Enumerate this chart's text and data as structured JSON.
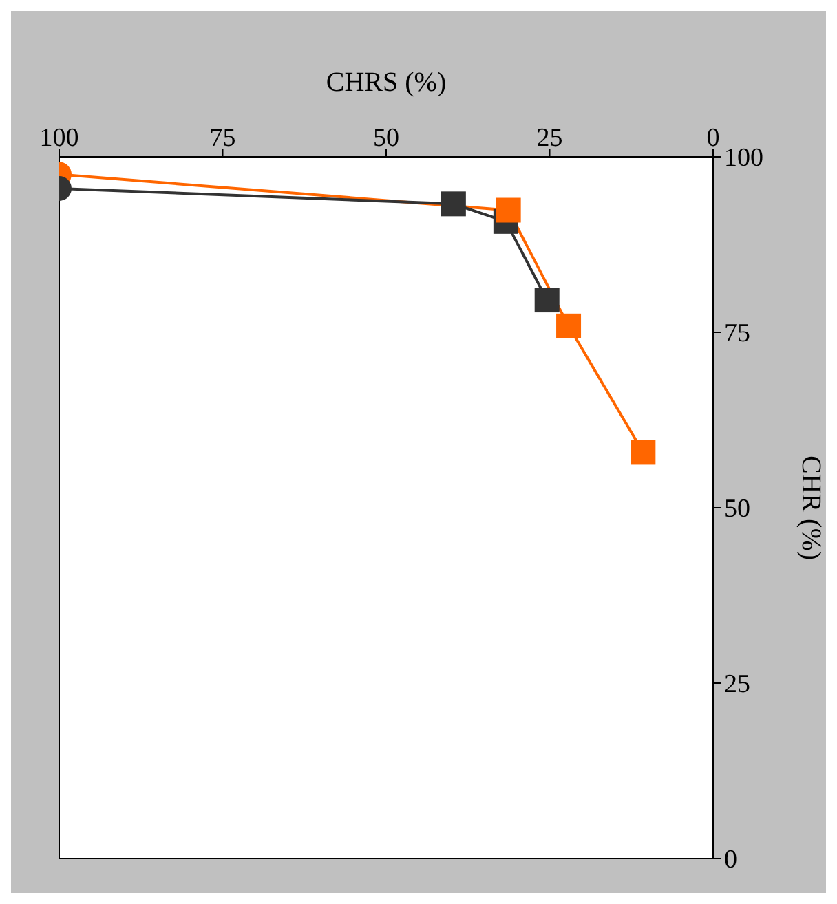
{
  "chart_data": {
    "type": "line",
    "xlabel": "CHRS (%)",
    "ylabel": "CHR (%)",
    "xlim": [
      100,
      0
    ],
    "xticks": [
      100,
      75,
      50,
      25,
      0
    ],
    "ylim": [
      0,
      100
    ],
    "yticks": [
      0,
      25,
      50,
      75,
      100
    ],
    "grid": false,
    "series": [
      {
        "color": "#ff6600",
        "marker": "none",
        "x": [
          100,
          31.3,
          22.1,
          10.7
        ],
        "values": [
          97.5,
          92.4,
          75.9,
          57.9
        ]
      },
      {
        "color": "#333333",
        "marker": "none",
        "x": [
          100,
          39.7,
          31.7,
          25.4
        ],
        "values": [
          95.5,
          93.3,
          90.8,
          79.6
        ]
      },
      {
        "type": "scatter",
        "color": "#ff6600",
        "marker": "circle",
        "x": [
          100
        ],
        "values": [
          97.5
        ]
      },
      {
        "type": "scatter",
        "color": "#333333",
        "marker": "circle",
        "x": [
          100
        ],
        "values": [
          95.5
        ]
      },
      {
        "type": "scatter",
        "color": "#333333",
        "marker": "square",
        "x": [
          39.7,
          31.7,
          25.4
        ],
        "values": [
          93.3,
          90.8,
          79.6
        ]
      },
      {
        "type": "scatter",
        "color": "#ff6600",
        "marker": "square",
        "x": [
          31.3,
          22.1,
          10.7
        ],
        "values": [
          92.4,
          75.9,
          57.9
        ]
      }
    ]
  }
}
